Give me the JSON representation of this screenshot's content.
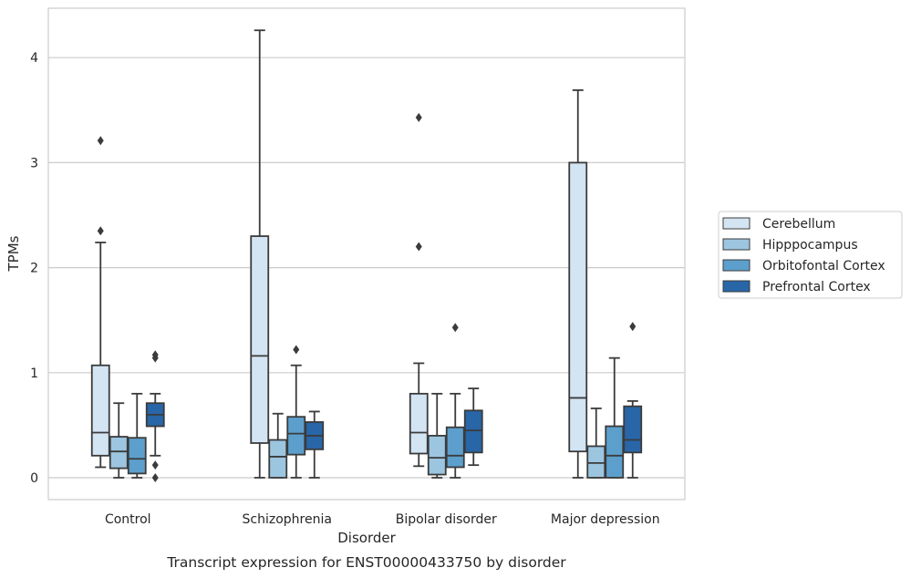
{
  "chart_data": {
    "type": "boxplot",
    "caption": "Transcript expression for ENST00000433750 by disorder",
    "xlabel": "Disorder",
    "ylabel": "TPMs",
    "ylim": [
      -0.2,
      4.45
    ],
    "yticks": [
      0,
      1,
      2,
      3,
      4
    ],
    "grid": "horizontal",
    "legend_position": "right",
    "categories": [
      "Control",
      "Schizophrenia",
      "Bipolar disorder",
      "Major depression"
    ],
    "series": [
      {
        "name": "Cerebellum",
        "color": "#d3e4f3",
        "boxes": [
          {
            "whislo": 0.1,
            "q1": 0.21,
            "med": 0.43,
            "q3": 1.07,
            "whishi": 2.24,
            "fliers": [
              2.35,
              3.21
            ]
          },
          {
            "whislo": 0.0,
            "q1": 0.33,
            "med": 1.16,
            "q3": 2.3,
            "whishi": 4.26,
            "fliers": []
          },
          {
            "whislo": 0.11,
            "q1": 0.23,
            "med": 0.43,
            "q3": 0.8,
            "whishi": 1.09,
            "fliers": [
              2.2,
              3.43
            ]
          },
          {
            "whislo": 0.0,
            "q1": 0.25,
            "med": 0.76,
            "q3": 3.0,
            "whishi": 3.69,
            "fliers": []
          }
        ]
      },
      {
        "name": "Hipppocampus",
        "color": "#9cc5e0",
        "boxes": [
          {
            "whislo": 0.0,
            "q1": 0.09,
            "med": 0.25,
            "q3": 0.39,
            "whishi": 0.71,
            "fliers": []
          },
          {
            "whislo": 0.0,
            "q1": 0.0,
            "med": 0.2,
            "q3": 0.36,
            "whishi": 0.61,
            "fliers": []
          },
          {
            "whislo": 0.0,
            "q1": 0.03,
            "med": 0.19,
            "q3": 0.4,
            "whishi": 0.8,
            "fliers": []
          },
          {
            "whislo": 0.0,
            "q1": 0.0,
            "med": 0.14,
            "q3": 0.3,
            "whishi": 0.66,
            "fliers": []
          }
        ]
      },
      {
        "name": "Orbitofontal Cortex",
        "color": "#5c9fcc",
        "boxes": [
          {
            "whislo": 0.0,
            "q1": 0.04,
            "med": 0.18,
            "q3": 0.38,
            "whishi": 0.8,
            "fliers": []
          },
          {
            "whislo": 0.0,
            "q1": 0.22,
            "med": 0.42,
            "q3": 0.58,
            "whishi": 1.07,
            "fliers": [
              1.22
            ]
          },
          {
            "whislo": 0.0,
            "q1": 0.1,
            "med": 0.21,
            "q3": 0.48,
            "whishi": 0.8,
            "fliers": [
              1.43
            ]
          },
          {
            "whislo": 0.0,
            "q1": 0.0,
            "med": 0.21,
            "q3": 0.49,
            "whishi": 1.14,
            "fliers": []
          }
        ]
      },
      {
        "name": "Prefrontal Cortex",
        "color": "#2866a8",
        "boxes": [
          {
            "whislo": 0.21,
            "q1": 0.49,
            "med": 0.6,
            "q3": 0.71,
            "whishi": 0.8,
            "fliers": [
              0.0,
              0.12,
              1.14,
              1.17
            ]
          },
          {
            "whislo": 0.0,
            "q1": 0.27,
            "med": 0.4,
            "q3": 0.53,
            "whishi": 0.63,
            "fliers": []
          },
          {
            "whislo": 0.12,
            "q1": 0.24,
            "med": 0.45,
            "q3": 0.64,
            "whishi": 0.85,
            "fliers": []
          },
          {
            "whislo": 0.0,
            "q1": 0.24,
            "med": 0.36,
            "q3": 0.68,
            "whishi": 0.73,
            "fliers": [
              1.44
            ]
          }
        ]
      }
    ]
  }
}
